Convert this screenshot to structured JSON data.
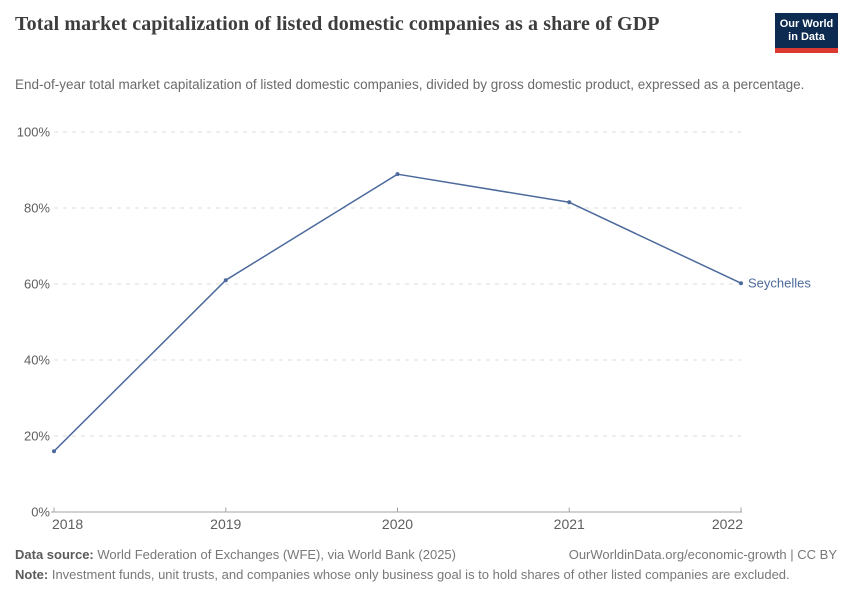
{
  "header": {
    "title": "Total market capitalization of listed domestic companies as a share of GDP",
    "subtitle": "End-of-year total market capitalization of listed domestic companies, divided by gross domestic product, expressed as a percentage.",
    "logo": {
      "line1": "Our World",
      "line2": "in Data"
    }
  },
  "chart_data": {
    "type": "line",
    "title": "Total market capitalization of listed domestic companies as a share of GDP",
    "x": [
      2018,
      2019,
      2020,
      2021,
      2022
    ],
    "x_tick_labels": [
      "2018",
      "2019",
      "2020",
      "2021",
      "2022"
    ],
    "series": [
      {
        "name": "Seychelles",
        "color": "#4c6a9c",
        "values": [
          16,
          61,
          88.9,
          81.5,
          60.2
        ]
      }
    ],
    "xlabel": "",
    "ylabel": "",
    "ylim": [
      0,
      100
    ],
    "yticks": [
      0,
      20,
      40,
      60,
      80,
      100
    ],
    "ytick_suffix": "%",
    "grid": "dashed horizontal gridlines",
    "legend_position": "end-of-line entity label",
    "entity_label": "Seychelles"
  },
  "footer": {
    "datasource_label": "Data source:",
    "datasource_text": "World Federation of Exchanges (WFE), via World Bank (2025)",
    "link_text": "OurWorldinData.org/economic-growth | CC BY",
    "note_label": "Note:",
    "note_text": "Investment funds, unit trusts, and companies whose only business goal is to hold shares of other listed companies are excluded."
  },
  "colors": {
    "accent": "#4c6a9c",
    "title": "#3d3d3d",
    "subtitle": "#6a6a6a",
    "grid": "#dcdcdc",
    "axis": "#a3a3a3",
    "tick_label": "#5e5e5e",
    "footer_text": "#787878",
    "logo_bg": "#0d2b50",
    "logo_bar": "#dc3a31"
  }
}
